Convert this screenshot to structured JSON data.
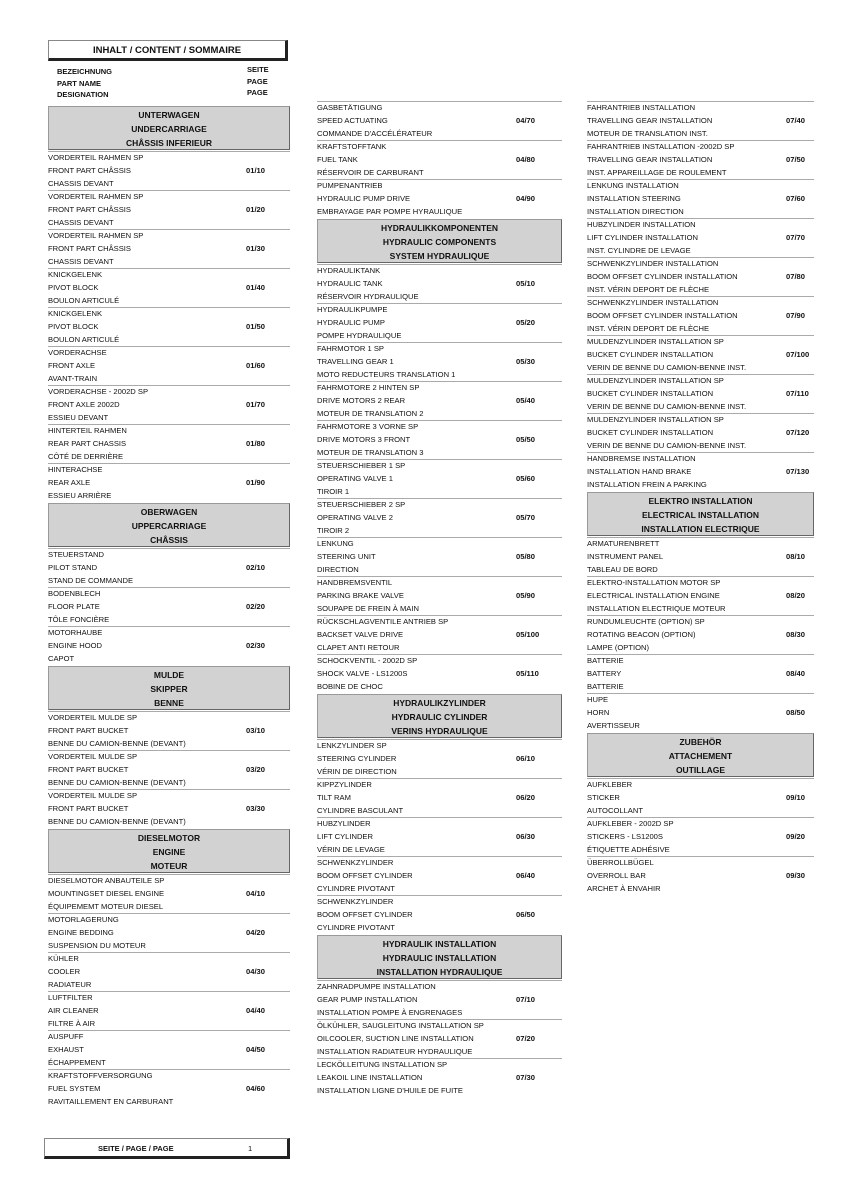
{
  "header": {
    "title": "INHALT / CONTENT / SOMMAIRE",
    "col_name": [
      "BEZEICHNUNG",
      "PART NAME",
      "DESIGNATION"
    ],
    "col_page": [
      "SEITE",
      "PAGE",
      "PAGE"
    ]
  },
  "footer": {
    "label": "SEITE / PAGE / PAGE",
    "page": "1"
  },
  "columns": [
    [
      {
        "section": [
          "UNTERWAGEN",
          "UNDERCARRIAGE",
          "CHÂSSIS INFERIEUR"
        ]
      },
      {
        "lines": [
          "VORDERTEIL RAHMEN  SP",
          "FRONT PART CHÂSSIS",
          "CHASSIS DEVANT"
        ],
        "page": "01/10"
      },
      {
        "lines": [
          "VORDERTEIL RAHMEN  SP",
          "FRONT PART CHÂSSIS",
          "CHASSIS DEVANT"
        ],
        "page": "01/20"
      },
      {
        "lines": [
          "VORDERTEIL RAHMEN  SP",
          "FRONT PART CHÂSSIS",
          "CHASSIS DEVANT"
        ],
        "page": "01/30"
      },
      {
        "lines": [
          "KNICKGELENK",
          "PIVOT BLOCK",
          "BOULON ARTICULÉ"
        ],
        "page": "01/40"
      },
      {
        "lines": [
          "KNICKGELENK",
          "PIVOT BLOCK",
          "BOULON ARTICULÉ"
        ],
        "page": "01/50"
      },
      {
        "lines": [
          "VORDERACHSE",
          "FRONT AXLE",
          "AVANT-TRAIN"
        ],
        "page": "01/60"
      },
      {
        "lines": [
          "VORDERACHSE - 2002D SP",
          "FRONT AXLE 2002D",
          "ESSIEU DEVANT"
        ],
        "page": "01/70"
      },
      {
        "lines": [
          "HINTERTEIL RAHMEN",
          "REAR PART CHASSIS",
          "CÔTÉ DE DERRIÈRE"
        ],
        "page": "01/80"
      },
      {
        "lines": [
          "HINTERACHSE",
          "REAR AXLE",
          "ESSIEU ARRIÈRE"
        ],
        "page": "01/90"
      },
      {
        "section": [
          "OBERWAGEN",
          "UPPERCARRIAGE",
          "CHÂSSIS"
        ]
      },
      {
        "lines": [
          "STEUERSTAND",
          "PILOT STAND",
          "STAND DE COMMANDE"
        ],
        "page": "02/10"
      },
      {
        "lines": [
          "BODENBLECH",
          "FLOOR PLATE",
          "TÔLE FONCIÈRE"
        ],
        "page": "02/20"
      },
      {
        "lines": [
          "MOTORHAUBE",
          "ENGINE HOOD",
          "CAPOT"
        ],
        "page": "02/30"
      },
      {
        "section": [
          "MULDE",
          "SKIPPER",
          "BENNE"
        ]
      },
      {
        "lines": [
          "VORDERTEIL MULDE  SP",
          "FRONT PART BUCKET",
          "BENNE DU CAMION-BENNE (DEVANT)"
        ],
        "page": "03/10"
      },
      {
        "lines": [
          "VORDERTEIL MULDE  SP",
          "FRONT PART BUCKET",
          "BENNE DU CAMION-BENNE (DEVANT)"
        ],
        "page": "03/20"
      },
      {
        "lines": [
          "VORDERTEIL MULDE  SP",
          "FRONT PART BUCKET",
          "BENNE DU CAMION-BENNE (DEVANT)"
        ],
        "page": "03/30"
      },
      {
        "section": [
          "DIESELMOTOR",
          "ENGINE",
          "MOTEUR"
        ]
      },
      {
        "lines": [
          "DIESELMOTOR ANBAUTEILE  SP",
          "MOUNTINGSET DIESEL ENGINE",
          "ÉQUIPEMEMT  MOTEUR DIESEL"
        ],
        "page": "04/10"
      },
      {
        "lines": [
          "MOTORLAGERUNG",
          "ENGINE BEDDING",
          "SUSPENSION DU MOTEUR"
        ],
        "page": "04/20"
      },
      {
        "lines": [
          "KÜHLER",
          "COOLER",
          "RADIATEUR"
        ],
        "page": "04/30"
      },
      {
        "lines": [
          "LUFTFILTER",
          "AIR CLEANER",
          "FILTRE À AIR"
        ],
        "page": "04/40"
      },
      {
        "lines": [
          "AUSPUFF",
          "EXHAUST",
          "ÉCHAPPEMENT"
        ],
        "page": "04/50"
      },
      {
        "lines": [
          "KRAFTSTOFFVERSORGUNG",
          "FUEL SYSTEM",
          "RAVITAILLEMENT EN CARBURANT"
        ],
        "page": "04/60"
      }
    ],
    [
      {
        "lines": [
          "GASBETÄTIGUNG",
          "SPEED ACTUATING",
          "COMMANDE D'ACCÉLÉRATEUR"
        ],
        "page": "04/70"
      },
      {
        "lines": [
          "KRAFTSTOFFTANK",
          "FUEL TANK",
          "RÉSERVOIR DE CARBURANT"
        ],
        "page": "04/80"
      },
      {
        "lines": [
          "PUMPENANTRIEB",
          "HYDRAULIC PUMP DRIVE",
          "EMBRAYAGE PAR POMPE HYRAULIQUE"
        ],
        "page": "04/90"
      },
      {
        "section": [
          "HYDRAULIKKOMPONENTEN",
          "HYDRAULIC COMPONENTS",
          "SYSTEM HYDRAULIQUE"
        ]
      },
      {
        "lines": [
          "HYDRAULIKTANK",
          "HYDRAULIC TANK",
          "RÉSERVOIR HYDRAULIQUE"
        ],
        "page": "05/10"
      },
      {
        "lines": [
          "HYDRAULIKPUMPE",
          "HYDRAULIC PUMP",
          "POMPE HYDRAULIQUE"
        ],
        "page": "05/20"
      },
      {
        "lines": [
          "FAHRMOTOR 1 SP",
          "TRAVELLING GEAR 1",
          "MOTO REDUCTEURS TRANSLATION 1"
        ],
        "page": "05/30"
      },
      {
        "lines": [
          "FAHRMOTORE 2 HINTEN SP",
          "DRIVE MOTORS 2 REAR",
          "MOTEUR DE TRANSLATION 2"
        ],
        "page": "05/40"
      },
      {
        "lines": [
          "FAHRMOTORE 3 VORNE SP",
          "DRIVE MOTORS 3 FRONT",
          "MOTEUR DE TRANSLATION 3"
        ],
        "page": "05/50"
      },
      {
        "lines": [
          "STEUERSCHIEBER 1 SP",
          "OPERATING VALVE 1",
          "TIROIR 1"
        ],
        "page": "05/60"
      },
      {
        "lines": [
          "STEUERSCHIEBER 2 SP",
          "OPERATING VALVE 2",
          "TIROIR 2"
        ],
        "page": "05/70"
      },
      {
        "lines": [
          "LENKUNG",
          "STEERING UNIT",
          "DIRECTION"
        ],
        "page": "05/80"
      },
      {
        "lines": [
          "HANDBREMSVENTIL",
          "PARKING BRAKE VALVE",
          "SOUPAPE DE FREIN À MAIN"
        ],
        "page": "05/90"
      },
      {
        "lines": [
          "RÜCKSCHLAGVENTILE ANTRIEB SP",
          "BACKSET VALVE DRIVE",
          "CLAPET ANTI RETOUR"
        ],
        "page": "05/100"
      },
      {
        "lines": [
          "SCHOCKVENTIL - 2002D SP",
          "SHOCK VALVE - LS1200S",
          "BOBINE DE CHOC"
        ],
        "page": "05/110"
      },
      {
        "section": [
          "HYDRAULIKZYLINDER",
          "HYDRAULIC CYLINDER",
          "VERINS HYDRAULIQUE"
        ]
      },
      {
        "lines": [
          "LENKZYLINDER SP",
          "STEERING CYLINDER",
          "VÉRIN DE DIRECTION"
        ],
        "page": "06/10"
      },
      {
        "lines": [
          "KIPPZYLINDER",
          "TILT RAM",
          "CYLINDRE BASCULANT"
        ],
        "page": "06/20"
      },
      {
        "lines": [
          "HUBZYLINDER",
          "LIFT CYLINDER",
          "VÉRIN DE LEVAGE"
        ],
        "page": "06/30"
      },
      {
        "lines": [
          "SCHWENKZYLINDER",
          "BOOM OFFSET CYLINDER",
          "CYLINDRE PIVOTANT"
        ],
        "page": "06/40"
      },
      {
        "lines": [
          "SCHWENKZYLINDER",
          "BOOM OFFSET CYLINDER",
          "CYLINDRE PIVOTANT"
        ],
        "page": "06/50"
      },
      {
        "section": [
          "HYDRAULIK INSTALLATION",
          "HYDRAULIC INSTALLATION",
          "INSTALLATION HYDRAULIQUE"
        ]
      },
      {
        "lines": [
          "ZAHNRADPUMPE INSTALLATION",
          "GEAR PUMP INSTALLATION",
          "INSTALLATION POMPE À ENGRENAGES"
        ],
        "page": "07/10"
      },
      {
        "lines": [
          "ÖLKÜHLER, SAUGLEITUNG INSTALLATION SP",
          "OILCOOLER, SUCTION LINE INSTALLATION",
          "INSTALLATION RADIATEUR HYDRAULIQUE"
        ],
        "page": "07/20"
      },
      {
        "lines": [
          "LECKÖLLEITUNG INSTALLATION SP",
          "LEAKOIL LINE INSTALLATION",
          "INSTALLATION LIGNE D'HUILE DE FUITE"
        ],
        "page": "07/30"
      }
    ],
    [
      {
        "lines": [
          "FAHRANTRIEB INSTALLATION",
          "TRAVELLING GEAR INSTALLATION",
          "MOTEUR DE TRANSLATION INST."
        ],
        "page": "07/40"
      },
      {
        "lines": [
          "FAHRANTRIEB INSTALLATION -2002D SP",
          "TRAVELLING GEAR INSTALLATION",
          "INST. APPAREILLAGE DE ROULEMENT"
        ],
        "page": "07/50"
      },
      {
        "lines": [
          "LENKUNG INSTALLATION",
          "INSTALLATION STEERING",
          "INSTALLATION DIRECTION"
        ],
        "page": "07/60"
      },
      {
        "lines": [
          "HUBZYLINDER INSTALLATION",
          "LIFT CYLINDER INSTALLATION",
          "INST. CYLINDRE DE LEVAGE"
        ],
        "page": "07/70"
      },
      {
        "lines": [
          "SCHWENKZYLINDER INSTALLATION",
          "BOOM OFFSET CYLINDER INSTALLATION",
          "INST. VÉRIN DEPORT DE FLÈCHE"
        ],
        "page": "07/80"
      },
      {
        "lines": [
          "SCHWENKZYLINDER INSTALLATION",
          "BOOM OFFSET CYLINDER INSTALLATION",
          "INST. VÉRIN DEPORT DE FLÈCHE"
        ],
        "page": "07/90"
      },
      {
        "lines": [
          "MULDENZYLINDER INSTALLATION SP",
          "BUCKET CYLINDER INSTALLATION",
          "VERIN DE BENNE DU CAMION-BENNE INST."
        ],
        "page": "07/100"
      },
      {
        "lines": [
          "MULDENZYLINDER INSTALLATION SP",
          "BUCKET CYLINDER INSTALLATION",
          "VERIN DE BENNE DU CAMION-BENNE INST."
        ],
        "page": "07/110"
      },
      {
        "lines": [
          "MULDENZYLINDER INSTALLATION SP",
          "BUCKET CYLINDER INSTALLATION",
          "VERIN DE BENNE DU CAMION-BENNE INST."
        ],
        "page": "07/120"
      },
      {
        "lines": [
          "HANDBREMSE INSTALLATION",
          "INSTALLATION HAND BRAKE",
          "INSTALLATION FREIN A PARKING"
        ],
        "page": "07/130"
      },
      {
        "section": [
          "ELEKTRO INSTALLATION",
          "ELECTRICAL INSTALLATION",
          "INSTALLATION ELECTRIQUE"
        ]
      },
      {
        "lines": [
          "ARMATURENBRETT",
          "INSTRUMENT PANEL",
          "TABLEAU DE BORD"
        ],
        "page": "08/10"
      },
      {
        "lines": [
          "ELEKTRO-INSTALLATION MOTOR SP",
          "ELECTRICAL INSTALLATION ENGINE",
          "INSTALLATION ELECTRIQUE MOTEUR"
        ],
        "page": "08/20"
      },
      {
        "lines": [
          "RUNDUMLEUCHTE (OPTION) SP",
          "ROTATING BEACON (OPTION)",
          "LAMPE (OPTION)"
        ],
        "page": "08/30"
      },
      {
        "lines": [
          "BATTERIE",
          "BATTERY",
          "BATTERIE"
        ],
        "page": "08/40"
      },
      {
        "lines": [
          "HUPE",
          "HORN",
          "AVERTISSEUR"
        ],
        "page": "08/50"
      },
      {
        "section": [
          "ZUBEHÖR",
          "ATTACHEMENT",
          "OUTILLAGE"
        ]
      },
      {
        "lines": [
          "AUFKLEBER",
          "STICKER",
          "AUTOCOLLANT"
        ],
        "page": "09/10"
      },
      {
        "lines": [
          "AUFKLEBER - 2002D SP",
          "STICKERS - LS1200S",
          "ÉTIQUETTE ADHÉSIVE"
        ],
        "page": "09/20"
      },
      {
        "lines": [
          "ÜBERROLLBÜGEL",
          "OVERROLL BAR",
          "ARCHET À ENVAHIR"
        ],
        "page": "09/30"
      }
    ]
  ]
}
